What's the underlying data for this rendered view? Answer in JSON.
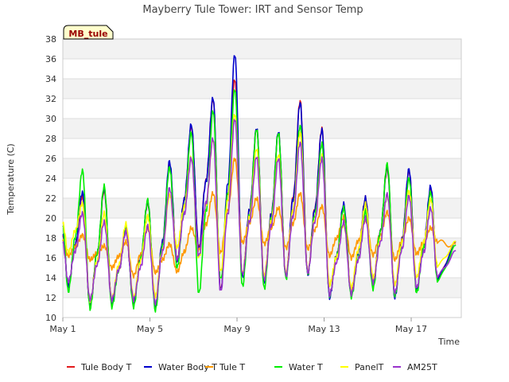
{
  "chart_data": {
    "type": "line",
    "title": "Mayberry Tule Tower: IRT and Sensor Temp",
    "xlabel": "Time",
    "ylabel": "Temperature (C)",
    "ylim": [
      10,
      38
    ],
    "yticks": [
      10,
      12,
      14,
      16,
      18,
      20,
      22,
      24,
      26,
      28,
      30,
      32,
      34,
      36,
      38
    ],
    "xlim": [
      0,
      18.3
    ],
    "xticks": [
      {
        "day": 0,
        "label": "May 1"
      },
      {
        "day": 4,
        "label": "May 5"
      },
      {
        "day": 8,
        "label": "May 9"
      },
      {
        "day": 12,
        "label": "May 13"
      },
      {
        "day": 16,
        "label": "May 17"
      }
    ],
    "station_label": "MB_tule",
    "daily_peaks": [
      {
        "day": 0.9,
        "label": "May 1"
      },
      {
        "day": 1.9,
        "label": "May 2"
      },
      {
        "day": 2.9,
        "label": "May 3"
      },
      {
        "day": 3.9,
        "label": "May 4"
      },
      {
        "day": 4.9,
        "label": "May 5"
      },
      {
        "day": 5.9,
        "label": "May 6"
      },
      {
        "day": 6.9,
        "label": "May 7"
      },
      {
        "day": 7.9,
        "label": "May 8"
      },
      {
        "day": 8.9,
        "label": "May 9"
      },
      {
        "day": 9.9,
        "label": "May 10"
      },
      {
        "day": 10.9,
        "label": "May 11"
      },
      {
        "day": 11.9,
        "label": "May 12"
      },
      {
        "day": 12.9,
        "label": "May 13"
      },
      {
        "day": 13.9,
        "label": "May 14"
      },
      {
        "day": 14.9,
        "label": "May 15"
      },
      {
        "day": 15.9,
        "label": "May 16"
      },
      {
        "day": 16.9,
        "label": "May 17"
      }
    ],
    "series": [
      {
        "name": "Tule Body T",
        "color": "#e31a1c",
        "max": [
          22.2,
          22.8,
          18.7,
          21.6,
          25.4,
          29.2,
          32.0,
          34.0,
          29.0,
          28.6,
          31.8,
          29.0,
          21.2,
          22.0,
          25.0,
          24.8,
          23.0
        ],
        "min": [
          13.2,
          11.2,
          11.6,
          11.5,
          11.1,
          15.8,
          17.0,
          12.8,
          14.1,
          13.6,
          14.1,
          14.4,
          12.2,
          12.4,
          13.4,
          12.2,
          12.8
        ]
      },
      {
        "name": "Water Body T",
        "color": "#0000cc",
        "max": [
          22.6,
          23.0,
          18.9,
          21.7,
          25.7,
          29.4,
          32.1,
          36.5,
          29.1,
          28.7,
          31.6,
          28.9,
          21.4,
          22.0,
          25.2,
          24.9,
          23.2
        ],
        "min": [
          13.1,
          11.1,
          11.5,
          11.4,
          11.0,
          15.6,
          16.8,
          12.6,
          14.0,
          13.5,
          14.0,
          14.3,
          12.0,
          12.2,
          13.2,
          12.0,
          12.7
        ]
      },
      {
        "name": "Tule T",
        "color": "#ff9900",
        "max": [
          18.3,
          17.2,
          17.6,
          19.0,
          17.4,
          19.0,
          22.5,
          26.0,
          22.0,
          21.0,
          22.5,
          21.2,
          20.1,
          19.8,
          20.6,
          20.0,
          19.0
        ],
        "min": [
          16.2,
          15.8,
          15.0,
          14.2,
          14.5,
          14.6,
          16.8,
          16.5,
          17.5,
          17.4,
          17.0,
          16.9,
          16.2,
          16.0,
          16.3,
          15.8,
          16.4
        ]
      },
      {
        "name": "Water T",
        "color": "#00ee00",
        "max": [
          24.8,
          23.2,
          19.3,
          21.8,
          25.1,
          28.6,
          30.8,
          33.0,
          29.0,
          28.6,
          29.3,
          27.5,
          21.0,
          20.7,
          25.4,
          24.0,
          22.6
        ],
        "min": [
          12.6,
          10.9,
          11.1,
          11.1,
          10.7,
          15.0,
          12.4,
          13.8,
          13.1,
          12.9,
          13.9,
          14.4,
          12.2,
          12.1,
          12.9,
          12.2,
          12.5
        ]
      },
      {
        "name": "PanelT",
        "color": "#ffff00",
        "max": [
          21.5,
          20.5,
          19.4,
          20.2,
          22.4,
          26.1,
          27.9,
          30.5,
          27.0,
          26.4,
          28.6,
          26.3,
          19.4,
          21.4,
          22.3,
          22.7,
          21.9
        ],
        "min": [
          16.5,
          11.7,
          11.9,
          12.0,
          12.1,
          17.0,
          16.0,
          14.6,
          14.4,
          14.2,
          14.4,
          14.6,
          13.3,
          13.0,
          14.0,
          13.3,
          14.0
        ]
      },
      {
        "name": "AM25T",
        "color": "#9933cc",
        "max": [
          20.5,
          19.6,
          18.6,
          19.2,
          23.0,
          26.0,
          28.0,
          30.0,
          26.2,
          26.0,
          27.6,
          26.0,
          19.6,
          20.0,
          22.4,
          22.2,
          21.0
        ],
        "min": [
          13.6,
          11.8,
          11.8,
          11.8,
          11.4,
          15.8,
          16.2,
          12.6,
          14.3,
          13.8,
          14.2,
          14.5,
          12.3,
          12.4,
          13.5,
          12.5,
          13.0
        ]
      }
    ]
  }
}
